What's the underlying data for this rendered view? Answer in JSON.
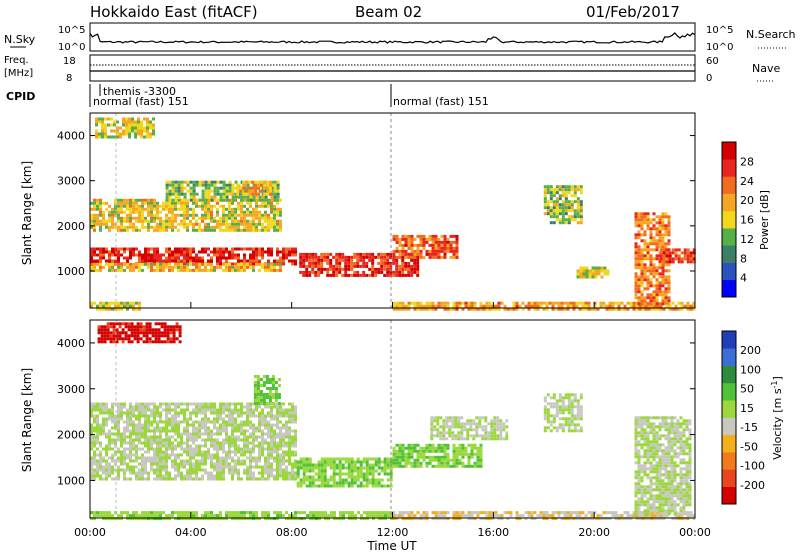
{
  "header": {
    "station": "Hokkaido East (fitACF)",
    "beam": "Beam 02",
    "date": "01/Feb/2017"
  },
  "panels": {
    "nsky": {
      "label": "N.Sky",
      "tick_top": "10^5",
      "tick_bottom": "10^0",
      "right_label": "N.Search",
      "right_tick_top": "10^5",
      "right_tick_bottom": "10^0"
    },
    "freq": {
      "label_line1": "Freq.",
      "label_line2": "[MHz]",
      "tick_top": "18",
      "tick_bottom": "8",
      "right_label": "Nave",
      "right_tick_top": "60",
      "right_tick_bottom": "0"
    },
    "cpid": {
      "label": "CPID",
      "entries": [
        {
          "text": "themis -3300",
          "start": "01:00"
        },
        {
          "text": "normal (fast) 151",
          "start": "00:00"
        },
        {
          "text": "normal (fast) 151",
          "start": "12:00"
        }
      ]
    }
  },
  "axes": {
    "ylabel": "Slant Range [km]",
    "xlabel": "Time UT",
    "y_ticks": [
      "1000",
      "2000",
      "3000",
      "4000"
    ],
    "x_ticks": [
      "00:00",
      "04:00",
      "08:00",
      "12:00",
      "16:00",
      "20:00",
      "00:00"
    ]
  },
  "colorbars": {
    "power": {
      "label": "Power [dB]",
      "ticks": [
        "28",
        "24",
        "20",
        "16",
        "12",
        "8",
        "4"
      ],
      "colors": [
        "#0000ff",
        "#2a52be",
        "#3d7f66",
        "#55b04a",
        "#f2d81c",
        "#f5a623",
        "#f26b21",
        "#e8261f",
        "#d40000"
      ]
    },
    "velocity": {
      "label_line1": "Velocity",
      "label_line2": "[m s",
      "label_sup": "-1",
      "label_close": "]",
      "ticks": [
        "200",
        "100",
        "50",
        "15",
        "-15",
        "-50",
        "-100",
        "-200"
      ],
      "colors": [
        "#1f3fb8",
        "#3b6fd6",
        "#2e8b3a",
        "#4fc23a",
        "#9ad83b",
        "#c8c8c0",
        "#f2b01a",
        "#f07a1c",
        "#e8461e",
        "#d40000"
      ]
    }
  },
  "chart_data": [
    {
      "type": "heatmap",
      "name": "power",
      "x_unit": "hours UT",
      "xlim": [
        0,
        24
      ],
      "y_unit": "km",
      "ylim": [
        180,
        4500
      ],
      "z_unit": "dB",
      "zlim": [
        0,
        32
      ],
      "echo_regions": [
        {
          "t": [
            0.0,
            8.2
          ],
          "range": [
            1180,
            1520
          ],
          "power": 27
        },
        {
          "t": [
            0.0,
            7.5
          ],
          "range": [
            1000,
            1180
          ],
          "power": 18
        },
        {
          "t": [
            0.0,
            7.5
          ],
          "range": [
            1900,
            2600
          ],
          "power": 17
        },
        {
          "t": [
            3.0,
            7.5
          ],
          "range": [
            2600,
            3000
          ],
          "power": 14
        },
        {
          "t": [
            5.8,
            7.2
          ],
          "range": [
            2700,
            3000
          ],
          "power": 20
        },
        {
          "t": [
            0.2,
            2.5
          ],
          "range": [
            4000,
            4400
          ],
          "power": 16
        },
        {
          "t": [
            8.3,
            13.0
          ],
          "range": [
            900,
            1400
          ],
          "power": 27
        },
        {
          "t": [
            12.0,
            14.5
          ],
          "range": [
            1300,
            1800
          ],
          "power": 24
        },
        {
          "t": [
            12.0,
            24.0
          ],
          "range": [
            180,
            320
          ],
          "power": 20
        },
        {
          "t": [
            0.0,
            2.0
          ],
          "range": [
            180,
            320
          ],
          "power": 16
        },
        {
          "t": [
            18.0,
            19.5
          ],
          "range": [
            2100,
            2900
          ],
          "power": 14
        },
        {
          "t": [
            19.3,
            20.5
          ],
          "range": [
            900,
            1100
          ],
          "power": 16
        },
        {
          "t": [
            21.6,
            23.0
          ],
          "range": [
            300,
            2300
          ],
          "power": 22
        },
        {
          "t": [
            22.6,
            24.0
          ],
          "range": [
            1200,
            1500
          ],
          "power": 26
        }
      ]
    },
    {
      "type": "heatmap",
      "name": "velocity",
      "x_unit": "hours UT",
      "xlim": [
        0,
        24
      ],
      "y_unit": "km",
      "ylim": [
        180,
        4500
      ],
      "z_unit": "m s-1",
      "zlim": [
        -250,
        250
      ],
      "echo_regions": [
        {
          "t": [
            0.3,
            3.6
          ],
          "range": [
            4050,
            4450
          ],
          "velocity": -220
        },
        {
          "t": [
            0.0,
            8.2
          ],
          "range": [
            1000,
            2700
          ],
          "velocity": 0
        },
        {
          "t": [
            8.2,
            12.0
          ],
          "range": [
            900,
            1500
          ],
          "velocity": 40
        },
        {
          "t": [
            12.0,
            15.5
          ],
          "range": [
            1300,
            1800
          ],
          "velocity": 45
        },
        {
          "t": [
            13.5,
            16.5
          ],
          "range": [
            1900,
            2400
          ],
          "velocity": 0
        },
        {
          "t": [
            6.5,
            7.5
          ],
          "range": [
            2700,
            3300
          ],
          "velocity": 60
        },
        {
          "t": [
            12.0,
            24.0
          ],
          "range": [
            180,
            330
          ],
          "velocity": -40
        },
        {
          "t": [
            0.0,
            12.0
          ],
          "range": [
            180,
            330
          ],
          "velocity": 30
        },
        {
          "t": [
            18.0,
            19.5
          ],
          "range": [
            2100,
            2900
          ],
          "velocity": 0
        },
        {
          "t": [
            21.6,
            23.8
          ],
          "range": [
            300,
            2400
          ],
          "velocity": 0
        }
      ]
    }
  ]
}
